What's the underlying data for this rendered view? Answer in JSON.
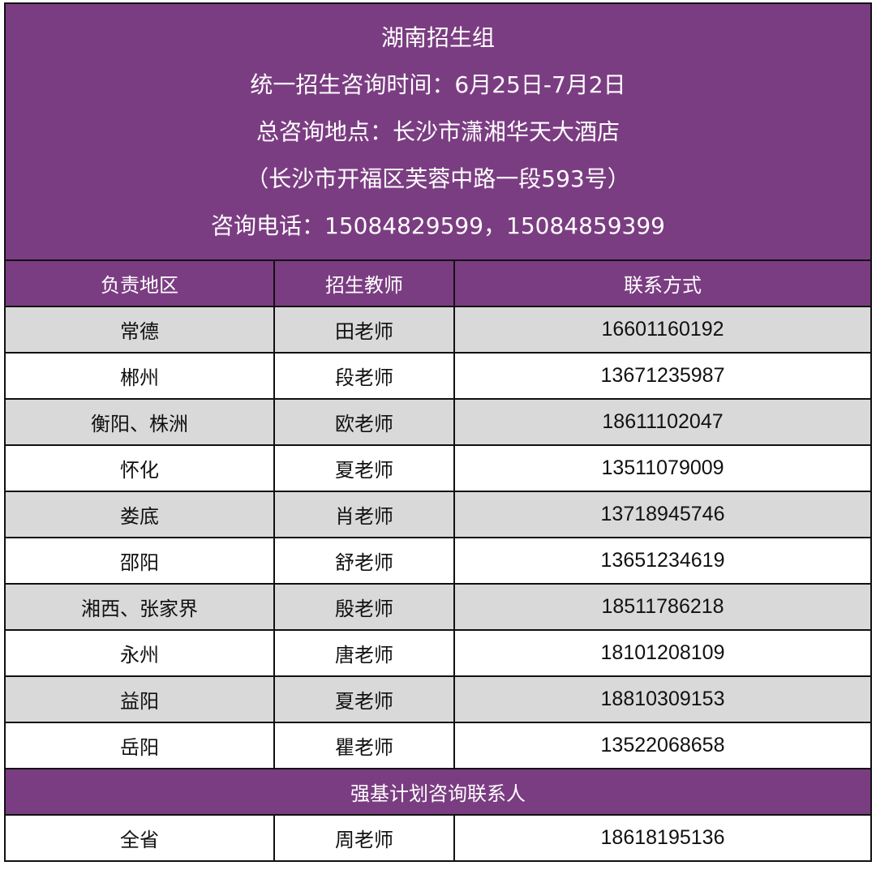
{
  "header": {
    "lines": [
      "湖南招生组",
      "统一招生咨询时间：6月25日-7月2日",
      "总咨询地点：长沙市潇湘华天大酒店",
      "（长沙市开福区芙蓉中路一段593号）",
      "咨询电话：15084829599，15084859399"
    ]
  },
  "columns": [
    "负责地区",
    "招生教师",
    "联系方式"
  ],
  "rows": [
    {
      "region": "常德",
      "teacher": "田老师",
      "phone": "16601160192"
    },
    {
      "region": "郴州",
      "teacher": "段老师",
      "phone": "13671235987"
    },
    {
      "region": "衡阳、株洲",
      "teacher": "欧老师",
      "phone": "18611102047"
    },
    {
      "region": "怀化",
      "teacher": "夏老师",
      "phone": "13511079009"
    },
    {
      "region": "娄底",
      "teacher": "肖老师",
      "phone": "13718945746"
    },
    {
      "region": "邵阳",
      "teacher": "舒老师",
      "phone": "13651234619"
    },
    {
      "region": "湘西、张家界",
      "teacher": "殷老师",
      "phone": "18511786218"
    },
    {
      "region": "永州",
      "teacher": "唐老师",
      "phone": "18101208109"
    },
    {
      "region": "益阳",
      "teacher": "夏老师",
      "phone": "18810309153"
    },
    {
      "region": "岳阳",
      "teacher": "瞿老师",
      "phone": "13522068658"
    }
  ],
  "section": {
    "title": "强基计划咨询联系人",
    "row": {
      "region": "全省",
      "teacher": "周老师",
      "phone": "18618195136"
    }
  },
  "colors": {
    "header": "#7b3d82",
    "stripe": "#d9d9d9"
  }
}
